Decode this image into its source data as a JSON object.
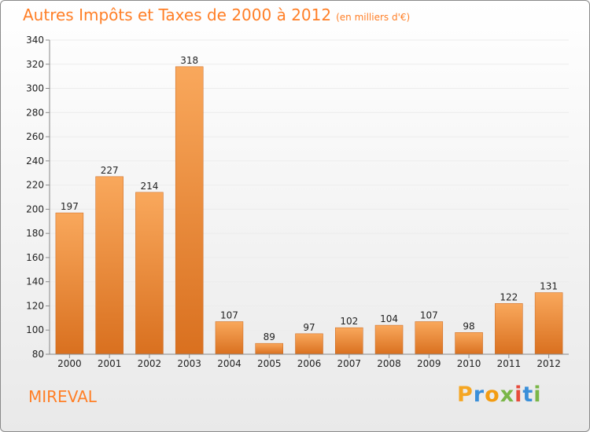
{
  "chart_title": "Autres Impôts et Taxes de 2000 à 2012",
  "chart_subtitle": "(en milliers d'€)",
  "place": "MIREVAL",
  "logo": {
    "text": "Proxiti",
    "colors": [
      "#f5a623",
      "#3a8fd9",
      "#f39c12",
      "#7ab648",
      "#e74c3c",
      "#3a8fd9",
      "#7ab648"
    ]
  },
  "colors": {
    "bar_light": "#f9a85c",
    "bar_dark": "#d9701f",
    "title": "#ff7f27",
    "grid": "#ececec",
    "axis": "#888888"
  },
  "chart_data": {
    "type": "bar",
    "title": "Autres Impôts et Taxes de 2000 à 2012",
    "categories": [
      "2000",
      "2001",
      "2002",
      "2003",
      "2004",
      "2005",
      "2006",
      "2007",
      "2008",
      "2009",
      "2010",
      "2011",
      "2012"
    ],
    "values": [
      197,
      227,
      214,
      318,
      107,
      89,
      97,
      102,
      104,
      107,
      98,
      122,
      131
    ],
    "ylim": [
      80,
      340
    ],
    "yticks": [
      80,
      100,
      120,
      140,
      160,
      180,
      200,
      220,
      240,
      260,
      280,
      300,
      320,
      340
    ],
    "xlabel": "",
    "ylabel": "",
    "grid": true,
    "legend": "none"
  }
}
